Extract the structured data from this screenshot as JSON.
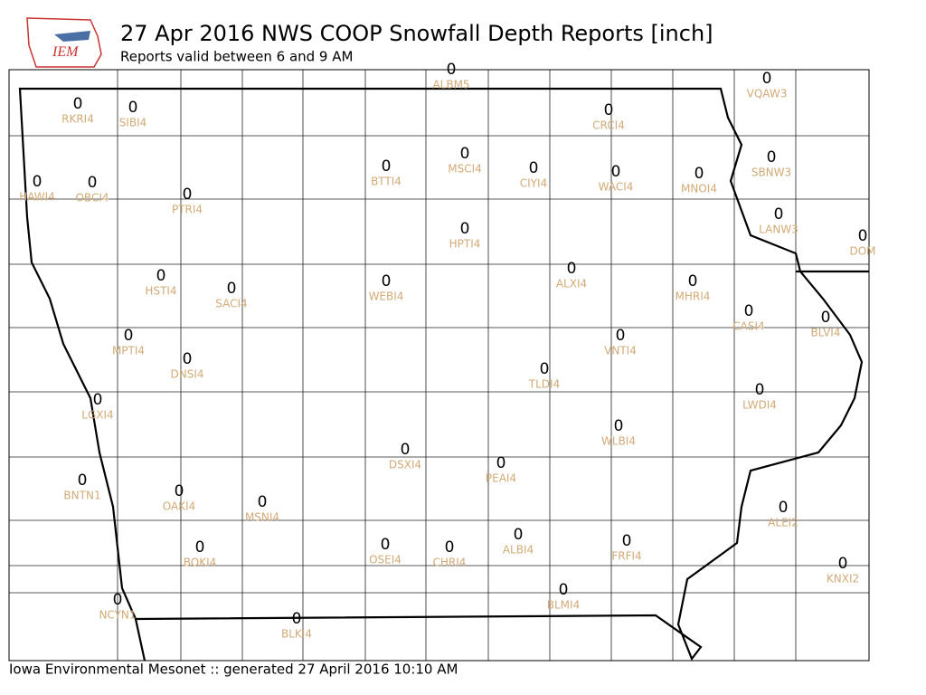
{
  "header": {
    "logo": "IEM",
    "title": "27 Apr 2016 NWS COOP Snowfall Depth Reports [inch]",
    "subtitle": "Reports valid between 6 and 9 AM"
  },
  "stations": [
    {
      "id": "ALBM5",
      "value": 0
    },
    {
      "id": "RKRI4",
      "value": 0
    },
    {
      "id": "SIBI4",
      "value": 0
    },
    {
      "id": "CRCI4",
      "value": 0
    },
    {
      "id": "VQAW3",
      "value": 0
    },
    {
      "id": "HAWI4",
      "value": 0
    },
    {
      "id": "OBCI4",
      "value": 0
    },
    {
      "id": "PTRI4",
      "value": 0
    },
    {
      "id": "BTTI4",
      "value": 0
    },
    {
      "id": "MSCI4",
      "value": 0
    },
    {
      "id": "CIYI4",
      "value": 0
    },
    {
      "id": "WACI4",
      "value": 0
    },
    {
      "id": "MNOI4",
      "value": 0
    },
    {
      "id": "SBNW3",
      "value": 0
    },
    {
      "id": "LANW3",
      "value": 0
    },
    {
      "id": "DOM",
      "value": 0
    },
    {
      "id": "HPTI4",
      "value": 0
    },
    {
      "id": "HSTI4",
      "value": 0
    },
    {
      "id": "SACI4",
      "value": 0
    },
    {
      "id": "WEBI4",
      "value": 0
    },
    {
      "id": "ALXI4",
      "value": 0
    },
    {
      "id": "MHRI4",
      "value": 0
    },
    {
      "id": "CASI4",
      "value": 0
    },
    {
      "id": "BLVI4",
      "value": 0
    },
    {
      "id": "MPTI4",
      "value": 0
    },
    {
      "id": "DNSI4",
      "value": 0
    },
    {
      "id": "VNTI4",
      "value": 0
    },
    {
      "id": "TLDI4",
      "value": 0
    },
    {
      "id": "LWDI4",
      "value": 0
    },
    {
      "id": "LGXI4",
      "value": 0
    },
    {
      "id": "WLBI4",
      "value": 0
    },
    {
      "id": "DSXI4",
      "value": 0
    },
    {
      "id": "PEAI4",
      "value": 0
    },
    {
      "id": "BNTN1",
      "value": 0
    },
    {
      "id": "OAKI4",
      "value": 0
    },
    {
      "id": "MSNI4",
      "value": 0
    },
    {
      "id": "ALEI2",
      "value": 0
    },
    {
      "id": "BOKI4",
      "value": 0
    },
    {
      "id": "OSEI4",
      "value": 0
    },
    {
      "id": "CHRI4",
      "value": 0
    },
    {
      "id": "ALBI4",
      "value": 0
    },
    {
      "id": "FRFI4",
      "value": 0
    },
    {
      "id": "KNXI2",
      "value": 0
    },
    {
      "id": "BLMI4",
      "value": 0
    },
    {
      "id": "NCYN1",
      "value": 0
    },
    {
      "id": "BLKI4",
      "value": 0
    }
  ],
  "footer": "Iowa Environmental Mesonet :: generated 27 April 2016 10:10 AM"
}
